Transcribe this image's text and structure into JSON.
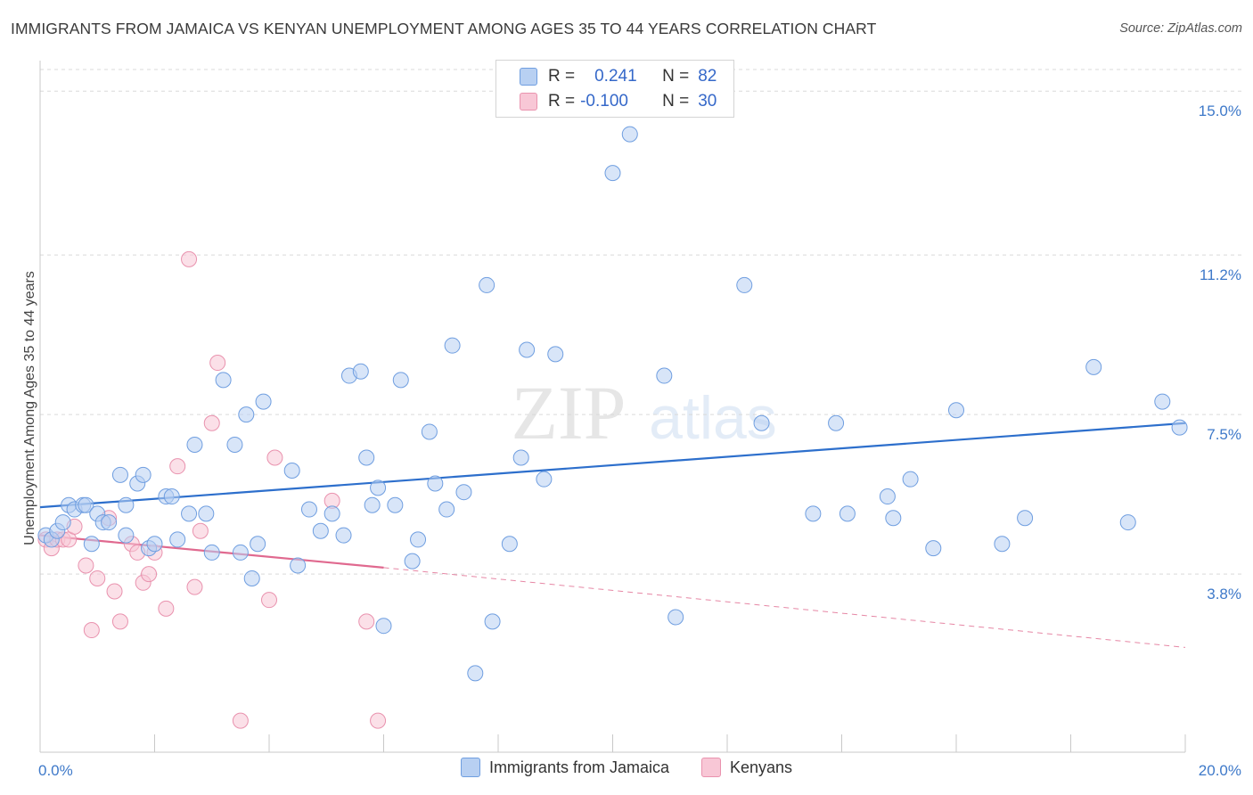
{
  "title": "IMMIGRANTS FROM JAMAICA VS KENYAN UNEMPLOYMENT AMONG AGES 35 TO 44 YEARS CORRELATION CHART",
  "source": "Source: ZipAtlas.com",
  "watermark": {
    "zip": "ZIP",
    "atlas": "atlas"
  },
  "legend": {
    "rows": [
      {
        "r_label": "R =",
        "r_value": "0.241",
        "n_label": "N =",
        "n_value": "82",
        "color": "#a8c6f0"
      },
      {
        "r_label": "R =",
        "r_value": "-0.100",
        "n_label": "N =",
        "n_value": "30",
        "color": "#f5b8cb"
      }
    ]
  },
  "colors": {
    "jamaica_fill": "#b8d0f2",
    "jamaica_stroke": "#6f9ee0",
    "jamaica_line": "#2d6fcc",
    "kenya_fill": "#f8c7d6",
    "kenya_stroke": "#e992ae",
    "kenya_line": "#e0698f",
    "tick_label": "#3e79c9",
    "grid": "#d9d9d9"
  },
  "chart_data": {
    "type": "scatter",
    "title": "IMMIGRANTS FROM JAMAICA VS KENYAN UNEMPLOYMENT AMONG AGES 35 TO 44 YEARS CORRELATION CHART",
    "xlabel": "",
    "ylabel": "Unemployment Among Ages 35 to 44 years",
    "xlim": [
      0,
      20
    ],
    "ylim": [
      0,
      15.5
    ],
    "x_tick_labels": [
      "0.0%",
      "20.0%"
    ],
    "y_ticks": [
      3.8,
      7.5,
      11.2,
      15.0
    ],
    "y_tick_labels": [
      "3.8%",
      "7.5%",
      "11.2%",
      "15.0%"
    ],
    "grid": "horizontal dashed",
    "legend_position": "bottom",
    "series": [
      {
        "name": "Immigrants from Jamaica",
        "r": 0.241,
        "n": 82,
        "trend": {
          "x": [
            0,
            20
          ],
          "y": [
            5.35,
            7.3
          ]
        },
        "points": [
          [
            0.1,
            4.7
          ],
          [
            0.2,
            4.6
          ],
          [
            0.3,
            4.8
          ],
          [
            0.4,
            5.0
          ],
          [
            0.5,
            5.4
          ],
          [
            0.6,
            5.3
          ],
          [
            0.75,
            5.4
          ],
          [
            0.8,
            5.4
          ],
          [
            0.9,
            4.5
          ],
          [
            1.0,
            5.2
          ],
          [
            1.1,
            5.0
          ],
          [
            1.2,
            5.0
          ],
          [
            1.4,
            6.1
          ],
          [
            1.5,
            5.4
          ],
          [
            1.5,
            4.7
          ],
          [
            1.7,
            5.9
          ],
          [
            1.8,
            6.1
          ],
          [
            1.9,
            4.4
          ],
          [
            2.0,
            4.5
          ],
          [
            2.2,
            5.6
          ],
          [
            2.3,
            5.6
          ],
          [
            2.4,
            4.6
          ],
          [
            2.6,
            5.2
          ],
          [
            2.7,
            6.8
          ],
          [
            2.9,
            5.2
          ],
          [
            3.0,
            4.3
          ],
          [
            3.2,
            8.3
          ],
          [
            3.4,
            6.8
          ],
          [
            3.5,
            4.3
          ],
          [
            3.6,
            7.5
          ],
          [
            3.7,
            3.7
          ],
          [
            3.8,
            4.5
          ],
          [
            3.9,
            7.8
          ],
          [
            4.4,
            6.2
          ],
          [
            4.5,
            4.0
          ],
          [
            4.7,
            5.3
          ],
          [
            4.9,
            4.8
          ],
          [
            5.1,
            5.2
          ],
          [
            5.3,
            4.7
          ],
          [
            5.4,
            8.4
          ],
          [
            5.6,
            8.5
          ],
          [
            5.7,
            6.5
          ],
          [
            5.8,
            5.4
          ],
          [
            5.9,
            5.8
          ],
          [
            6.0,
            2.6
          ],
          [
            6.2,
            5.4
          ],
          [
            6.3,
            8.3
          ],
          [
            6.5,
            4.1
          ],
          [
            6.6,
            4.6
          ],
          [
            6.8,
            7.1
          ],
          [
            6.9,
            5.9
          ],
          [
            7.1,
            5.3
          ],
          [
            7.2,
            9.1
          ],
          [
            7.4,
            5.7
          ],
          [
            7.6,
            1.5
          ],
          [
            7.8,
            10.5
          ],
          [
            7.9,
            2.7
          ],
          [
            8.2,
            4.5
          ],
          [
            8.4,
            6.5
          ],
          [
            8.5,
            9.0
          ],
          [
            8.8,
            6.0
          ],
          [
            9.0,
            8.9
          ],
          [
            10.0,
            13.1
          ],
          [
            10.3,
            14.0
          ],
          [
            10.9,
            8.4
          ],
          [
            11.1,
            2.8
          ],
          [
            12.3,
            10.5
          ],
          [
            12.6,
            7.3
          ],
          [
            13.5,
            5.2
          ],
          [
            13.9,
            7.3
          ],
          [
            14.1,
            5.2
          ],
          [
            14.8,
            5.6
          ],
          [
            14.9,
            5.1
          ],
          [
            15.2,
            6.0
          ],
          [
            15.6,
            4.4
          ],
          [
            16.0,
            7.6
          ],
          [
            16.8,
            4.5
          ],
          [
            17.2,
            5.1
          ],
          [
            18.4,
            8.6
          ],
          [
            19.0,
            5.0
          ],
          [
            19.6,
            7.8
          ],
          [
            19.9,
            7.2
          ]
        ]
      },
      {
        "name": "Kenyans",
        "r": -0.1,
        "n": 30,
        "trend": {
          "x": [
            0,
            6.0
          ],
          "y": [
            4.7,
            3.95
          ]
        },
        "trend_dashed": {
          "x": [
            6.0,
            20
          ],
          "y": [
            3.95,
            2.1
          ]
        },
        "points": [
          [
            0.1,
            4.6
          ],
          [
            0.2,
            4.4
          ],
          [
            0.3,
            4.6
          ],
          [
            0.4,
            4.6
          ],
          [
            0.5,
            4.6
          ],
          [
            0.6,
            4.9
          ],
          [
            0.8,
            4.0
          ],
          [
            0.9,
            2.5
          ],
          [
            1.0,
            3.7
          ],
          [
            1.2,
            5.1
          ],
          [
            1.3,
            3.4
          ],
          [
            1.4,
            2.7
          ],
          [
            1.6,
            4.5
          ],
          [
            1.7,
            4.3
          ],
          [
            1.8,
            3.6
          ],
          [
            1.9,
            3.8
          ],
          [
            2.0,
            4.3
          ],
          [
            2.2,
            3.0
          ],
          [
            2.4,
            6.3
          ],
          [
            2.7,
            3.5
          ],
          [
            2.8,
            4.8
          ],
          [
            3.0,
            7.3
          ],
          [
            3.1,
            8.7
          ],
          [
            2.6,
            11.1
          ],
          [
            3.5,
            0.4
          ],
          [
            4.0,
            3.2
          ],
          [
            4.1,
            6.5
          ],
          [
            5.1,
            5.5
          ],
          [
            5.7,
            2.7
          ],
          [
            5.9,
            0.4
          ]
        ]
      }
    ]
  },
  "bottom_legend": [
    {
      "label": "Immigrants from Jamaica"
    },
    {
      "label": "Kenyans"
    }
  ]
}
